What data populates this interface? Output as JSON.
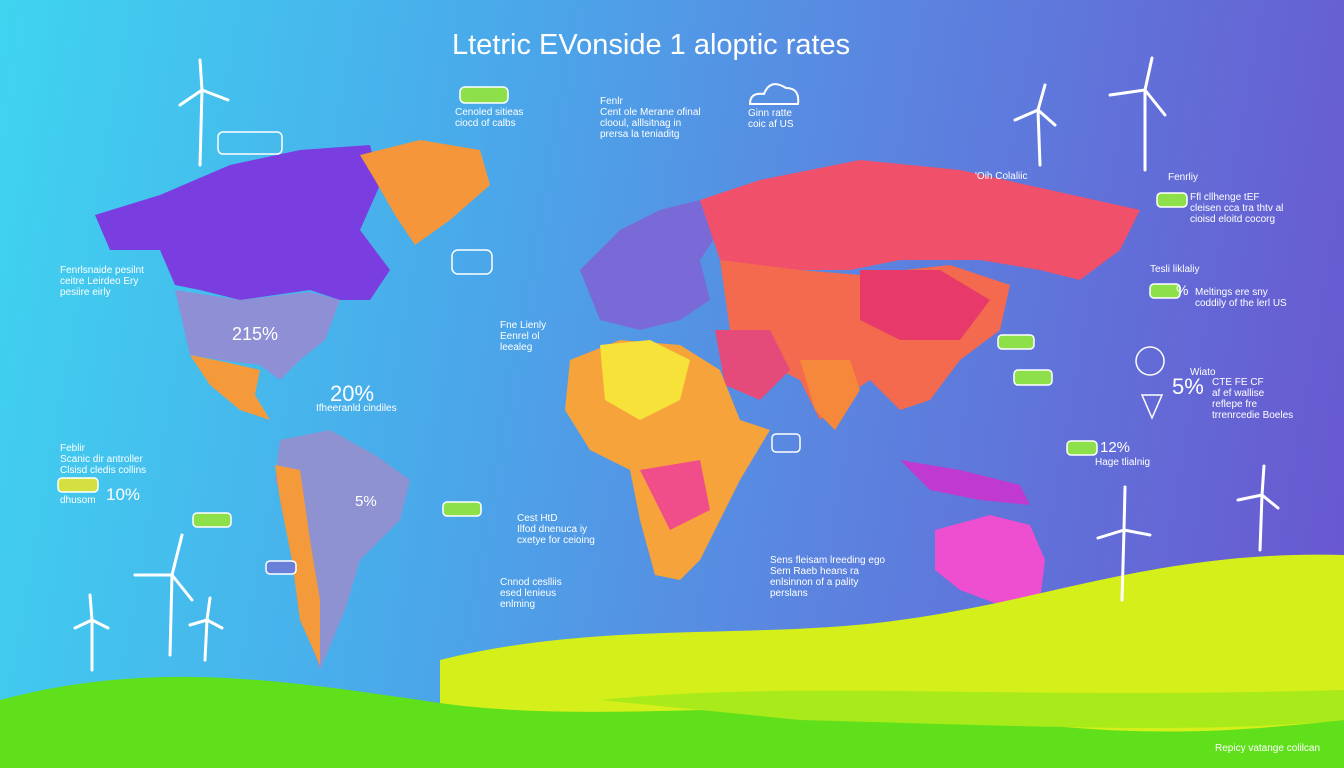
{
  "title": "Ltetric EVonside 1 aloptic rates",
  "percentages": [
    "215%",
    "20%",
    "10%",
    "5%",
    "5%",
    "12%",
    "%"
  ],
  "notes": [
    [
      "Fenrlsnaide pesilnt",
      "ceitre Leirdeo Ery",
      "pesiire eirly"
    ],
    [
      "Ifheeranld cindiles"
    ],
    [
      "Feblir",
      "Scanic dir antroller",
      "Clsisd cledis collins"
    ],
    [
      "dhusom"
    ],
    [
      "Cenoled sitieas",
      "ciocd of calbs"
    ],
    [
      "Fenlr",
      "Cent ole Merane ofinal",
      "clooul, alllsitnag in",
      "prersa la teniaditg"
    ],
    [
      "Ginn ratte",
      "coic af US"
    ],
    [
      "Fne Lienly",
      "Eenrel ol",
      "leealeg"
    ],
    [
      "Cest HtD",
      "Ilfod dnenuca iy",
      "cxetye for ceioing"
    ],
    [
      "Cnnod ceslliis",
      "esed lenieus",
      "enlming"
    ],
    [
      "Sens fleisam lreeding ego",
      "Sem Raeb heans ra",
      "enlsinnon of a pality",
      "perslans"
    ],
    [
      "'Oih Colaliic"
    ],
    [
      "Fenrliy"
    ],
    [
      "Ffl cllhenge tEF",
      "cleisen cca tra thtv al",
      "cioisd eloitd cocorg"
    ],
    [
      "Tesli liklaliy"
    ],
    [
      "Meltings ere sny",
      "coddily of the lerl US"
    ],
    [
      "Wiato"
    ],
    [
      "CTE FE CF",
      "af ef wallise",
      "reflepe fre",
      "trrenrcedie Boeles"
    ],
    [
      "Hage tlialnig"
    ],
    [
      "Repicy vatange colilcan"
    ]
  ]
}
